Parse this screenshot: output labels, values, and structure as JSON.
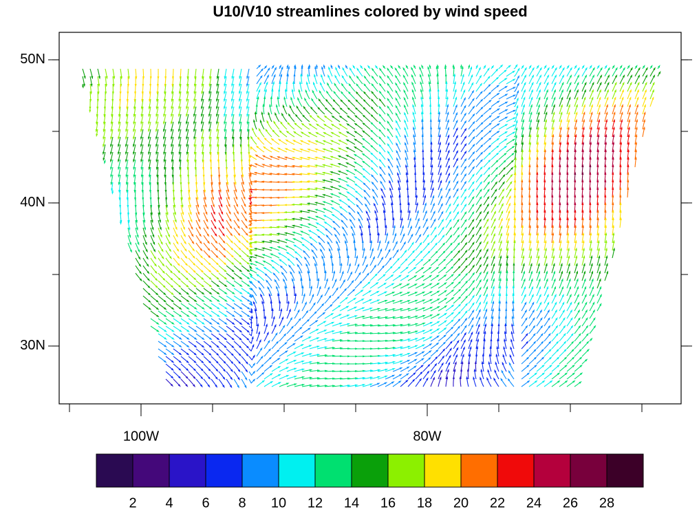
{
  "map": {
    "title": "U10/V10 streamlines colored by wind speed",
    "xlim": [
      -105.72,
      -62.26
    ],
    "ylim": [
      25.96,
      51.92
    ],
    "xticks": [
      {
        "value": -100,
        "label": "100W"
      },
      {
        "value": -80,
        "label": "80W"
      }
    ],
    "yticks": [
      {
        "value": 30,
        "label": "30N"
      },
      {
        "value": 40,
        "label": "40N"
      },
      {
        "value": 50,
        "label": "50N"
      }
    ],
    "colorbar": {
      "levels": [
        2,
        4,
        6,
        8,
        10,
        12,
        14,
        16,
        18,
        20,
        22,
        24,
        26,
        28
      ],
      "colors": [
        "#2a0a52",
        "#44087a",
        "#2a14c8",
        "#0a28f0",
        "#0a8cff",
        "#00f0f0",
        "#00e070",
        "#0aa00a",
        "#8cf000",
        "#ffe000",
        "#ff6e00",
        "#f00a0a",
        "#b4003c",
        "#78003c",
        "#3c0028"
      ]
    }
  }
}
